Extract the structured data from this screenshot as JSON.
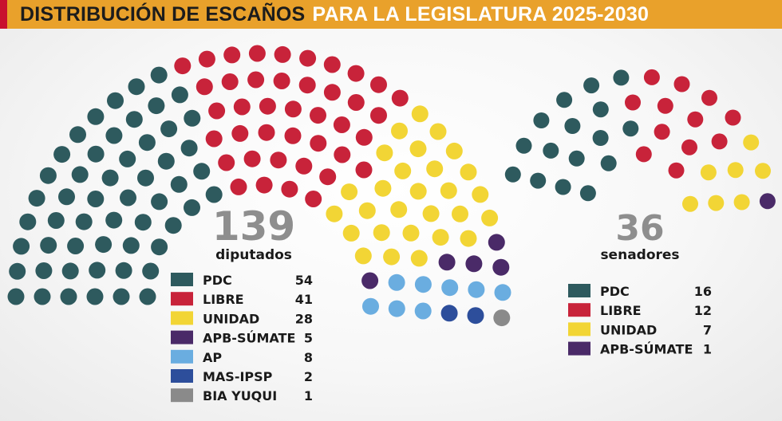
{
  "header": {
    "title_dark": "DISTRIBUCIÓN DE ESCAÑOS",
    "title_light": "PARA LA LEGISLATURA 2025-2030"
  },
  "chart_data": [
    {
      "type": "parliament",
      "total": 139,
      "total_label": "139",
      "sublabel": "diputados",
      "series": [
        {
          "name": "PDC",
          "value": 54,
          "color": "#2e5a5e"
        },
        {
          "name": "LIBRE",
          "value": 41,
          "color": "#c8233a"
        },
        {
          "name": "UNIDAD",
          "value": 28,
          "color": "#f2d535"
        },
        {
          "name": "APB-SÚMATE",
          "value": 5,
          "color": "#4a2a68"
        },
        {
          "name": "AP",
          "value": 8,
          "color": "#6aade0"
        },
        {
          "name": "MAS-IPSP",
          "value": 2,
          "color": "#2d4e9b"
        },
        {
          "name": "BIA YUQUI",
          "value": 1,
          "color": "#8a8a8a"
        }
      ]
    },
    {
      "type": "parliament",
      "total": 36,
      "total_label": "36",
      "sublabel": "senadores",
      "series": [
        {
          "name": "PDC",
          "value": 16,
          "color": "#2e5a5e"
        },
        {
          "name": "LIBRE",
          "value": 12,
          "color": "#c8233a"
        },
        {
          "name": "UNIDAD",
          "value": 7,
          "color": "#f2d535"
        },
        {
          "name": "APB-SÚMATE",
          "value": 1,
          "color": "#4a2a68"
        }
      ]
    }
  ]
}
